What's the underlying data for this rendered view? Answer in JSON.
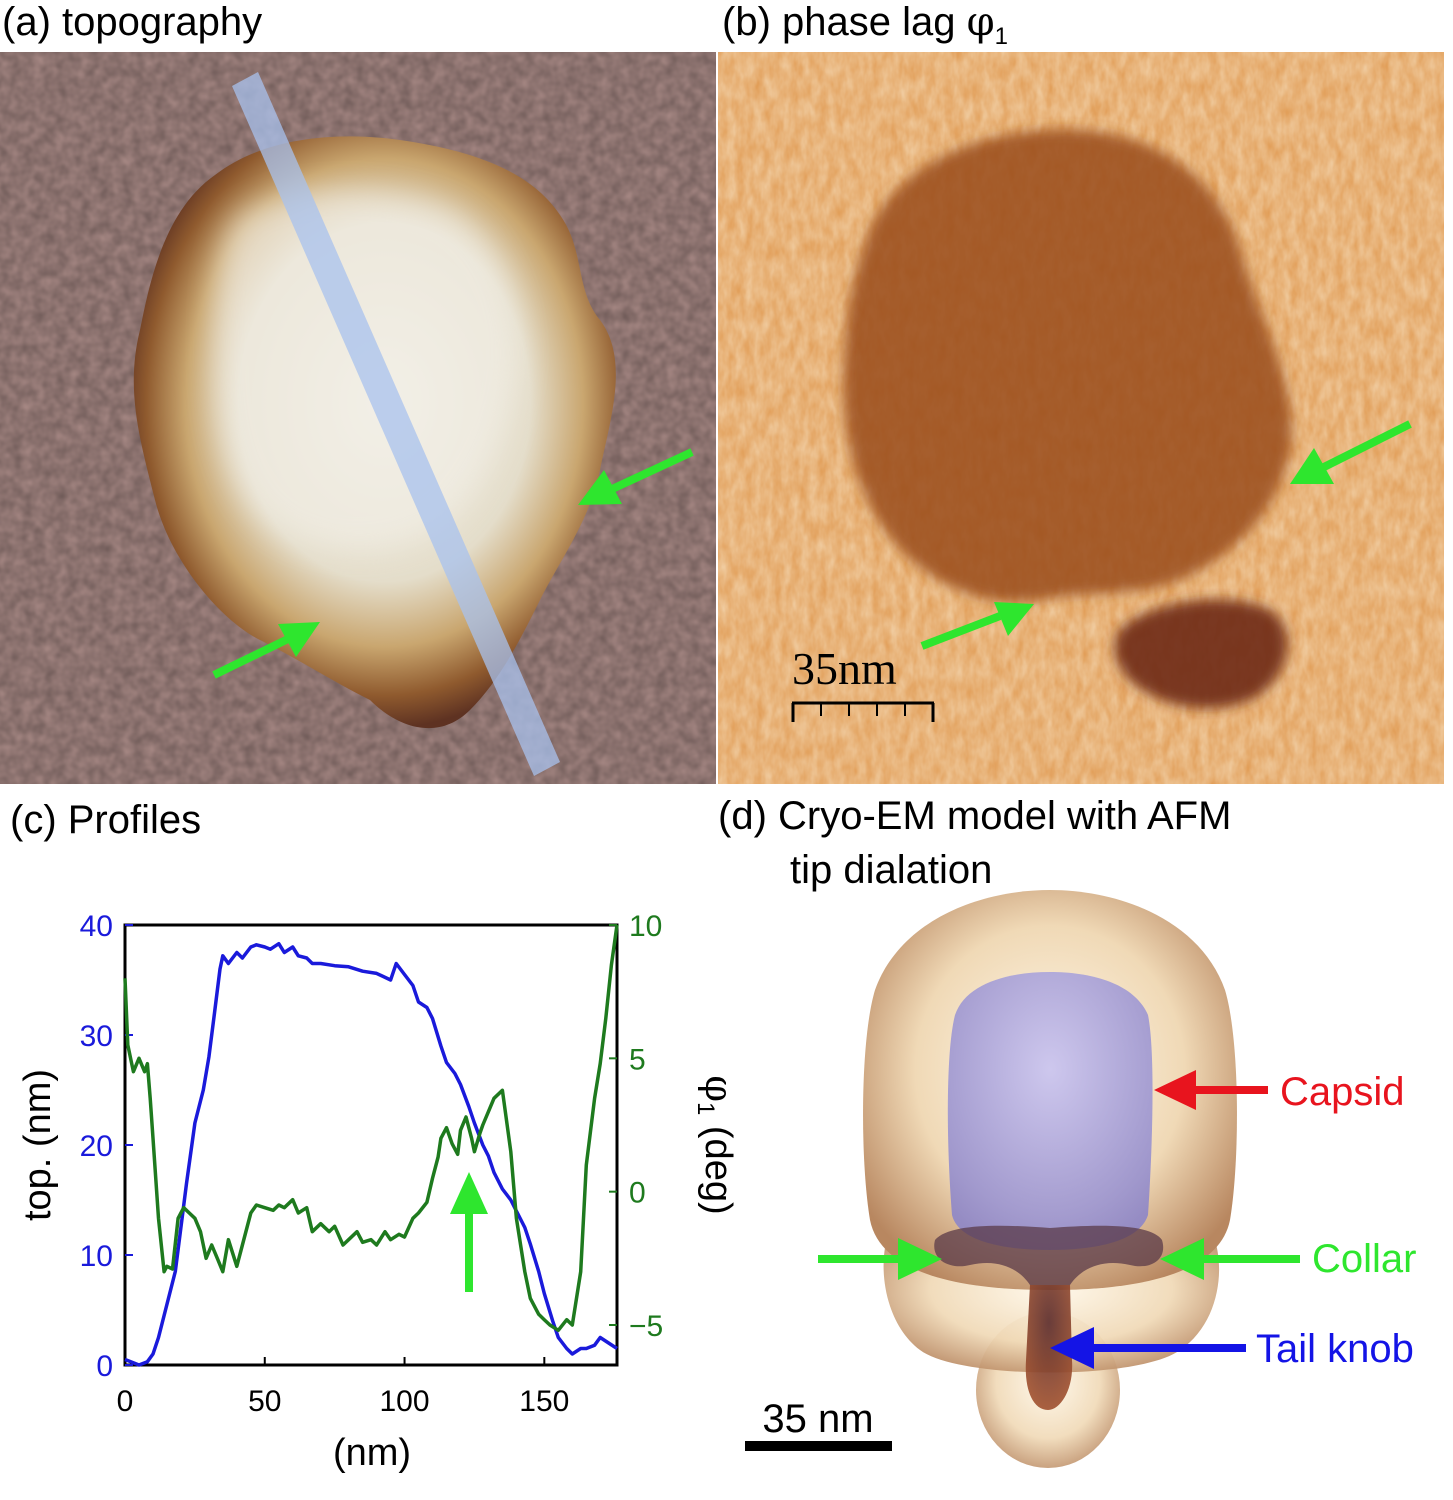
{
  "panels": {
    "a": {
      "label": "(a) topography"
    },
    "b": {
      "label_main": "(b) phase lag ",
      "label_phi": "φ",
      "label_sub": "1",
      "scalebar": "35nm"
    },
    "c": {
      "label": "(c) Profiles"
    },
    "d": {
      "label_line1": "(d) Cryo-EM model with AFM",
      "label_line2": "tip dialation",
      "scalebar": "35 nm",
      "annotations": {
        "capsid": "Capsid",
        "collar": "Collar",
        "tail_knob": "Tail knob"
      }
    }
  },
  "colors": {
    "topography": "#1a1adb",
    "phase": "#1e7a1e",
    "arrow_green": "#2ee62e",
    "capsid_red": "#e8141e",
    "tail_blue": "#1414e6"
  },
  "chart_data": {
    "type": "line",
    "xlabel": "(nm)",
    "ylabel_left": "top. (nm)",
    "ylabel_right_phi": "φ",
    "ylabel_right_sub": "1",
    "ylabel_right_unit": " (deg)",
    "xlim": [
      0,
      176
    ],
    "ylim_left": [
      0,
      40
    ],
    "ylim_right": [
      -6.5,
      10
    ],
    "xticks": [
      0,
      50,
      100,
      150
    ],
    "yticks_left": [
      0,
      10,
      20,
      30,
      40
    ],
    "yticks_right": [
      -5,
      0,
      5,
      10
    ],
    "yticks_right_labels": [
      "−5",
      "0",
      "5",
      "10"
    ],
    "series": [
      {
        "axis": "left",
        "x": [
          0,
          5,
          8,
          10,
          12,
          15,
          18,
          20,
          22,
          25,
          28,
          30,
          32,
          34,
          35,
          37,
          40,
          42,
          45,
          47,
          50,
          52,
          55,
          57,
          60,
          62,
          65,
          67,
          70,
          75,
          80,
          85,
          90,
          95,
          97,
          100,
          103,
          105,
          108,
          110,
          113,
          115,
          118,
          120,
          123,
          125,
          128,
          130,
          132,
          135,
          138,
          140,
          143,
          145,
          148,
          150,
          153,
          155,
          158,
          160,
          163,
          165,
          168,
          170,
          173,
          176
        ],
        "y": [
          0.5,
          0,
          0.3,
          1,
          2.5,
          5.5,
          8.5,
          12.5,
          16.5,
          22,
          25,
          28,
          32,
          36,
          37.2,
          36.5,
          37.5,
          37,
          38,
          38.2,
          38,
          37.8,
          38.3,
          37.5,
          38,
          37.2,
          37,
          36.5,
          36.5,
          36.3,
          36.2,
          35.8,
          35.6,
          35,
          36.5,
          35.5,
          34.5,
          33,
          32.5,
          31.5,
          29,
          27.5,
          26.5,
          25.5,
          23.5,
          22,
          20,
          19,
          17.5,
          16,
          15,
          14,
          12.5,
          11,
          8.5,
          6.5,
          4,
          2.5,
          1.5,
          1,
          1.5,
          1.5,
          1.8,
          2.5,
          2,
          1.5
        ]
      },
      {
        "axis": "right",
        "x": [
          0,
          1,
          3,
          5,
          7,
          8,
          9,
          10,
          12,
          14,
          15,
          17,
          19,
          20,
          21,
          23,
          25,
          27,
          29,
          31,
          33,
          35,
          37,
          40,
          42,
          45,
          47,
          50,
          53,
          55,
          57,
          60,
          62,
          65,
          67,
          70,
          73,
          75,
          78,
          80,
          83,
          85,
          88,
          90,
          93,
          95,
          98,
          100,
          103,
          105,
          108,
          110,
          112,
          113,
          115,
          117,
          119,
          120,
          122,
          124,
          125,
          127,
          128,
          130,
          132,
          135,
          138,
          140,
          143,
          145,
          148,
          150,
          152,
          155,
          158,
          160,
          163,
          165,
          168,
          170,
          172,
          174,
          176
        ],
        "y": [
          8,
          5.5,
          4.5,
          5,
          4.5,
          4.8,
          3.5,
          2,
          -1,
          -3,
          -2.8,
          -2.9,
          -1,
          -0.8,
          -0.6,
          -0.8,
          -1,
          -1.5,
          -2.5,
          -2,
          -2.5,
          -3,
          -1.8,
          -2.8,
          -2,
          -0.8,
          -0.5,
          -0.6,
          -0.7,
          -0.5,
          -0.6,
          -0.3,
          -0.8,
          -0.6,
          -1.5,
          -1.2,
          -1.5,
          -1.3,
          -2,
          -1.8,
          -1.5,
          -1.9,
          -1.8,
          -2,
          -1.5,
          -1.8,
          -1.6,
          -1.7,
          -1,
          -0.8,
          -0.4,
          0.5,
          1.3,
          2,
          2.4,
          1.8,
          1.4,
          2.3,
          2.8,
          2,
          1.5,
          2.2,
          2.5,
          3,
          3.5,
          3.8,
          1.5,
          -1,
          -3,
          -4,
          -4.6,
          -4.8,
          -5.0,
          -5.2,
          -4.8,
          -5,
          -3,
          1,
          3.5,
          4.8,
          6.5,
          8.5,
          10
        ]
      }
    ]
  }
}
